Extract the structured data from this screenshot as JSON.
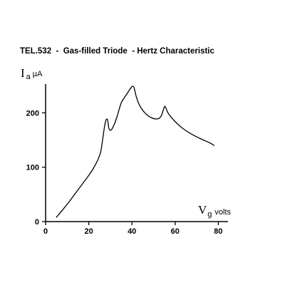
{
  "chart_data": {
    "type": "line",
    "title": "TEL.532  -  Gas-filled Triode  - Hertz Characteristic",
    "ylabel": {
      "symbol": "I",
      "subscript": "a",
      "unit": "µA"
    },
    "xlabel": {
      "symbol": "V",
      "subscript": "g",
      "unit": "volts"
    },
    "xlim": [
      0,
      85
    ],
    "ylim": [
      0,
      260
    ],
    "xticks": [
      0,
      20,
      40,
      60,
      80
    ],
    "yticks": [
      0,
      100,
      200
    ],
    "grid": false,
    "series": [
      {
        "x": [
          5,
          8,
          11,
          14,
          17,
          20,
          22,
          24,
          25.5,
          26.5,
          27.3,
          28,
          28.7,
          29.3,
          30.2,
          31.5,
          33,
          35,
          36.5,
          38,
          39.5,
          40.3,
          41,
          42,
          43.5,
          46,
          49,
          52,
          53.5,
          54.5,
          55.2,
          55.8,
          57,
          60,
          64,
          68,
          72,
          76,
          78
        ],
        "y": [
          8,
          22,
          37,
          53,
          69,
          85,
          97,
          112,
          128,
          153,
          175,
          187,
          187,
          172,
          168,
          176,
          192,
          218,
          228,
          237,
          246,
          249,
          246,
          230,
          214,
          200,
          191,
          189,
          194,
          205,
          212,
          208,
          198,
          184,
          170,
          160,
          152,
          145,
          140
        ]
      }
    ]
  }
}
